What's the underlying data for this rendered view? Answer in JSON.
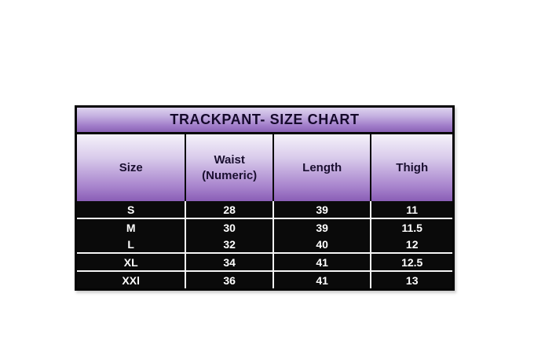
{
  "chart_data": {
    "type": "table",
    "title": "TRACKPANT- SIZE CHART",
    "columns": [
      "Size",
      "Waist (Numeric)",
      "Length",
      "Thigh"
    ],
    "rows": [
      [
        "S",
        "28",
        "39",
        "11"
      ],
      [
        "M",
        "30",
        "39",
        "11.5"
      ],
      [
        "L",
        "32",
        "40",
        "12"
      ],
      [
        "XL",
        "34",
        "41",
        "12.5"
      ],
      [
        "XXl",
        "36",
        "41",
        "13"
      ]
    ]
  },
  "table": {
    "title": "TRACKPANT- SIZE CHART",
    "headers": [
      {
        "line1": "Size"
      },
      {
        "line1": "Waist",
        "line2": "(Numeric)"
      },
      {
        "line1": "Length"
      },
      {
        "line1": "Thigh"
      }
    ],
    "rows": [
      {
        "cells": [
          "S",
          "28",
          "39",
          "11"
        ]
      },
      {
        "cells": [
          "M",
          "30",
          "39",
          "11.5"
        ]
      },
      {
        "cells": [
          "L",
          "32",
          "40",
          "12"
        ]
      },
      {
        "cells": [
          "XL",
          "34",
          "41",
          "12.5"
        ]
      },
      {
        "cells": [
          "XXl",
          "36",
          "41",
          "13"
        ]
      }
    ]
  },
  "colors": {
    "page_background": "#ffffff",
    "title_gradient_top": "#ddd3ee",
    "title_gradient_bottom": "#8a62b5",
    "header_gradient_top": "#f5f2fa",
    "header_gradient_bottom": "#8a5eb6",
    "header_text": "#15092b",
    "data_background": "#0a0a0a",
    "data_text": "#ffffff",
    "border": "#060606",
    "separator": "#f5f5f5"
  }
}
